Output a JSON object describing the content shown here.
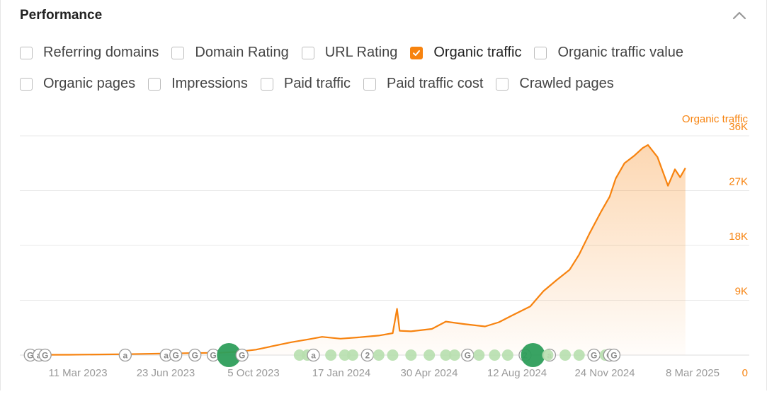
{
  "panel": {
    "title": "Performance"
  },
  "metrics_row1": [
    {
      "label": "Referring domains",
      "checked": false
    },
    {
      "label": "Domain Rating",
      "checked": false
    },
    {
      "label": "URL Rating",
      "checked": false
    },
    {
      "label": "Organic traffic",
      "checked": true
    },
    {
      "label": "Organic traffic value",
      "checked": false
    }
  ],
  "metrics_row2": [
    {
      "label": "Organic pages",
      "checked": false
    },
    {
      "label": "Impressions",
      "checked": false
    },
    {
      "label": "Paid traffic",
      "checked": false
    },
    {
      "label": "Paid traffic cost",
      "checked": false
    },
    {
      "label": "Crawled pages",
      "checked": false
    }
  ],
  "colors": {
    "accent": "#f7830f",
    "marker_green": "#2e9e5b",
    "marker_light": "#b7dfae",
    "axis_text": "#999999"
  },
  "chart_data": {
    "type": "area",
    "series": [
      {
        "name": "Organic traffic"
      }
    ],
    "y_axis_title": "Organic traffic",
    "yticks": [
      0,
      9000,
      18000,
      27000,
      36000
    ],
    "ytick_labels": [
      "0",
      "9K",
      "18K",
      "27K",
      "36K"
    ],
    "ylim": [
      0,
      36000
    ],
    "xticks": [
      "11 Mar 2023",
      "23 Jun 2023",
      "5 Oct 2023",
      "17 Jan 2024",
      "30 Apr 2024",
      "12 Aug 2024",
      "24 Nov 2024",
      "8 Mar 2025"
    ],
    "xlim": [
      "2023-02-07",
      "2025-04-08"
    ],
    "points": [
      [
        "2023-02-19",
        50
      ],
      [
        "2023-04-05",
        60
      ],
      [
        "2023-06-10",
        150
      ],
      [
        "2023-08-20",
        330
      ],
      [
        "2023-09-25",
        380
      ],
      [
        "2023-10-15",
        550
      ],
      [
        "2023-11-05",
        900
      ],
      [
        "2023-11-25",
        1500
      ],
      [
        "2023-12-15",
        2100
      ],
      [
        "2024-01-05",
        2600
      ],
      [
        "2024-01-20",
        3000
      ],
      [
        "2024-02-10",
        2700
      ],
      [
        "2024-03-01",
        2900
      ],
      [
        "2024-03-25",
        3200
      ],
      [
        "2024-04-10",
        3600
      ],
      [
        "2024-04-15",
        7600
      ],
      [
        "2024-04-18",
        4000
      ],
      [
        "2024-05-01",
        3900
      ],
      [
        "2024-05-25",
        4300
      ],
      [
        "2024-06-10",
        5500
      ],
      [
        "2024-07-01",
        5100
      ],
      [
        "2024-07-25",
        4700
      ],
      [
        "2024-08-10",
        5400
      ],
      [
        "2024-08-25",
        6500
      ],
      [
        "2024-09-15",
        8000
      ],
      [
        "2024-09-30",
        10500
      ],
      [
        "2024-10-15",
        12300
      ],
      [
        "2024-10-30",
        14000
      ],
      [
        "2024-11-10",
        16500
      ],
      [
        "2024-11-22",
        20000
      ],
      [
        "2024-12-05",
        23500
      ],
      [
        "2024-12-15",
        26000
      ],
      [
        "2024-12-22",
        29000
      ],
      [
        "2025-01-01",
        31500
      ],
      [
        "2025-01-12",
        32700
      ],
      [
        "2025-01-22",
        34000
      ],
      [
        "2025-01-28",
        34500
      ],
      [
        "2025-02-08",
        32500
      ],
      [
        "2025-02-20",
        27800
      ],
      [
        "2025-02-28",
        30500
      ],
      [
        "2025-03-06",
        29200
      ],
      [
        "2025-03-12",
        30700
      ]
    ],
    "annotations": [
      {
        "label": "G",
        "date": "2023-02-19",
        "style": "gray"
      },
      {
        "label": "a",
        "date": "2023-03-01",
        "style": "gray"
      },
      {
        "label": "G",
        "date": "2023-03-08",
        "style": "gray"
      },
      {
        "label": "a",
        "date": "2023-06-08",
        "style": "gray"
      },
      {
        "label": "a",
        "date": "2023-07-25",
        "style": "gray"
      },
      {
        "label": "G",
        "date": "2023-08-05",
        "style": "gray"
      },
      {
        "label": "G",
        "date": "2023-08-27",
        "style": "gray"
      },
      {
        "label": "G",
        "date": "2023-09-17",
        "style": "gray"
      },
      {
        "label": "",
        "date": "2023-10-05",
        "style": "green-big"
      },
      {
        "label": "G",
        "date": "2023-10-20",
        "style": "gray"
      },
      {
        "label": "",
        "date": "2023-12-25",
        "style": "light"
      },
      {
        "label": "",
        "date": "2024-01-03",
        "style": "light"
      },
      {
        "label": "a",
        "date": "2024-01-10",
        "style": "gray"
      },
      {
        "label": "",
        "date": "2024-01-30",
        "style": "light"
      },
      {
        "label": "",
        "date": "2024-02-15",
        "style": "light"
      },
      {
        "label": "",
        "date": "2024-02-24",
        "style": "light"
      },
      {
        "label": "2",
        "date": "2024-03-12",
        "style": "gray"
      },
      {
        "label": "",
        "date": "2024-03-25",
        "style": "light"
      },
      {
        "label": "",
        "date": "2024-04-10",
        "style": "light"
      },
      {
        "label": "",
        "date": "2024-05-01",
        "style": "light"
      },
      {
        "label": "",
        "date": "2024-05-22",
        "style": "light"
      },
      {
        "label": "",
        "date": "2024-06-10",
        "style": "light"
      },
      {
        "label": "",
        "date": "2024-06-20",
        "style": "light"
      },
      {
        "label": "G",
        "date": "2024-07-05",
        "style": "gray"
      },
      {
        "label": "",
        "date": "2024-07-18",
        "style": "light"
      },
      {
        "label": "",
        "date": "2024-08-05",
        "style": "light"
      },
      {
        "label": "",
        "date": "2024-08-20",
        "style": "light"
      },
      {
        "label": "2",
        "date": "2024-09-09",
        "style": "gray"
      },
      {
        "label": "",
        "date": "2024-09-18",
        "style": "green-big"
      },
      {
        "label": "a",
        "date": "2024-10-07",
        "style": "gray"
      },
      {
        "label": "",
        "date": "2024-10-05",
        "style": "light"
      },
      {
        "label": "",
        "date": "2024-10-25",
        "style": "light"
      },
      {
        "label": "",
        "date": "2024-11-10",
        "style": "light"
      },
      {
        "label": "G",
        "date": "2024-11-27",
        "style": "gray"
      },
      {
        "label": "",
        "date": "2024-12-10",
        "style": "light"
      },
      {
        "label": "G",
        "date": "2024-12-15",
        "style": "gray"
      },
      {
        "label": "G",
        "date": "2024-12-20",
        "style": "gray"
      }
    ]
  }
}
